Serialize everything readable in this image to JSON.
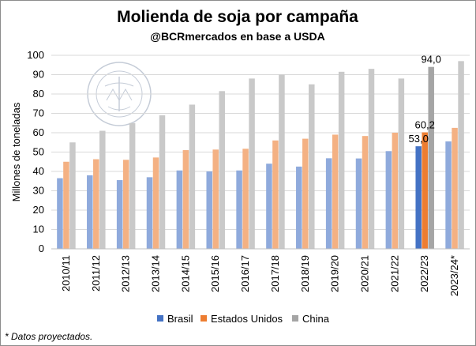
{
  "chart_data": {
    "type": "bar",
    "title": "Molienda de soja por campaña",
    "subtitle": "@BCRmercados en base a USDA",
    "ylabel": "Millones de toneladas",
    "xlabel": "",
    "ylim": [
      0,
      100
    ],
    "yticks": [
      0,
      10,
      20,
      30,
      40,
      50,
      60,
      70,
      80,
      90,
      100
    ],
    "grid": true,
    "legend_position": "bottom",
    "categories": [
      "2010/11",
      "2011/12",
      "2012/13",
      "2013/14",
      "2014/15",
      "2015/16",
      "2016/17",
      "2017/18",
      "2018/19",
      "2019/20",
      "2020/21",
      "2021/22",
      "2022/23",
      "2023/24*"
    ],
    "series": [
      {
        "name": "Brasil",
        "color": "#8faadc",
        "highlight_color": "#4472c4",
        "values": [
          36.5,
          38.0,
          35.5,
          37.0,
          40.5,
          40.0,
          40.5,
          44.0,
          42.5,
          46.8,
          46.7,
          50.5,
          53.0,
          55.5
        ]
      },
      {
        "name": "Estados Unidos",
        "color": "#f4b183",
        "highlight_color": "#ed7d31",
        "values": [
          45.0,
          46.3,
          46.0,
          47.2,
          51.0,
          51.3,
          51.7,
          56.0,
          56.9,
          59.0,
          58.3,
          60.0,
          60.2,
          62.5
        ]
      },
      {
        "name": "China",
        "color": "#c9c9c9",
        "highlight_color": "#a5a5a5",
        "values": [
          55.0,
          61.0,
          65.0,
          69.0,
          74.5,
          81.5,
          88.0,
          90.0,
          85.0,
          91.5,
          93.0,
          88.0,
          94.0,
          97.0
        ]
      }
    ],
    "highlight_category": "2022/23",
    "data_labels": [
      {
        "category": "2022/23",
        "series": "Brasil",
        "text": "53,0"
      },
      {
        "category": "2022/23",
        "series": "Estados Unidos",
        "text": "60,2"
      },
      {
        "category": "2022/23",
        "series": "China",
        "text": "94,0"
      }
    ],
    "footnote": "* Datos proyectados."
  }
}
